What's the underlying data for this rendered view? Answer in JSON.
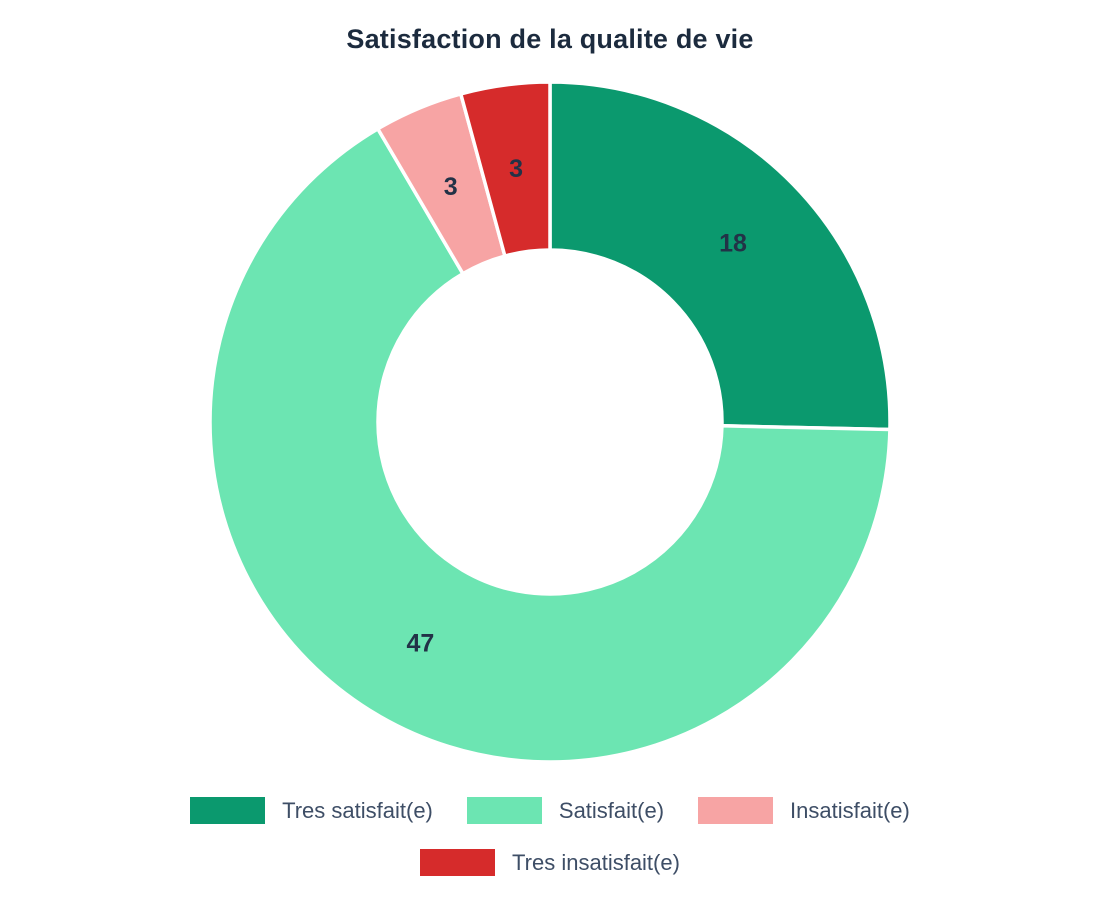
{
  "title": "Satisfaction de la qualite de vie",
  "chart_data": {
    "type": "pie",
    "title": "Satisfaction de la qualite de vie",
    "labels": [
      "Tres satisfait(e)",
      "Satisfait(e)",
      "Insatisfait(e)",
      "Tres insatisfait(e)"
    ],
    "values": [
      18,
      47,
      3,
      3
    ],
    "total": 71,
    "colors": [
      "#0b996e",
      "#6ce5b2",
      "#f7a4a4",
      "#d62b2b"
    ],
    "hole_ratio": 0.5,
    "direction": "clockwise",
    "start_angle_deg": 0,
    "value_labels_shown": true,
    "legend_position": "bottom",
    "legend_rows": [
      [
        0,
        1,
        2
      ],
      [
        3
      ]
    ]
  },
  "styles": {
    "background": "#ffffff",
    "title_color": "#1c2b3e",
    "value_label_color": "#223247",
    "legend_text_color": "#3e4e66",
    "slice_border_color": "#ffffff"
  }
}
